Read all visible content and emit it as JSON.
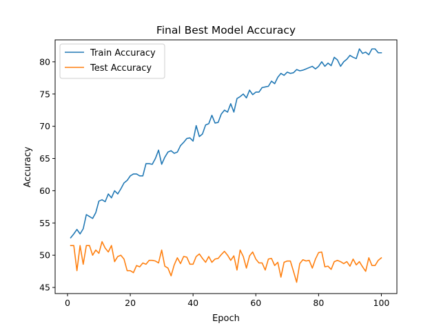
{
  "chart_data": {
    "type": "line",
    "title": "Final Best Model Accuracy",
    "xlabel": "Epoch",
    "ylabel": "Accuracy",
    "xlim": [
      -3.95,
      104.95
    ],
    "ylim": [
      44.05,
      83.4
    ],
    "xticks": [
      0,
      20,
      40,
      60,
      80,
      100
    ],
    "yticks": [
      45,
      50,
      55,
      60,
      65,
      70,
      75,
      80
    ],
    "grid": false,
    "legend_position": "top-left",
    "x": [
      1,
      2,
      3,
      4,
      5,
      6,
      7,
      8,
      9,
      10,
      11,
      12,
      13,
      14,
      15,
      16,
      17,
      18,
      19,
      20,
      21,
      22,
      23,
      24,
      25,
      26,
      27,
      28,
      29,
      30,
      31,
      32,
      33,
      34,
      35,
      36,
      37,
      38,
      39,
      40,
      41,
      42,
      43,
      44,
      45,
      46,
      47,
      48,
      49,
      50,
      51,
      52,
      53,
      54,
      55,
      56,
      57,
      58,
      59,
      60,
      61,
      62,
      63,
      64,
      65,
      66,
      67,
      68,
      69,
      70,
      71,
      72,
      73,
      74,
      75,
      76,
      77,
      78,
      79,
      80,
      81,
      82,
      83,
      84,
      85,
      86,
      87,
      88,
      89,
      90,
      91,
      92,
      93,
      94,
      95,
      96,
      97,
      98,
      99,
      100
    ],
    "series": [
      {
        "name": "Train Accuracy",
        "color": "#1f77b4",
        "values": [
          52.7,
          53.3,
          54.0,
          53.3,
          54.1,
          56.3,
          56.0,
          55.7,
          56.6,
          58.4,
          58.6,
          58.3,
          59.5,
          58.9,
          60.0,
          59.5,
          60.3,
          61.2,
          61.6,
          62.3,
          62.6,
          62.6,
          62.3,
          62.3,
          64.2,
          64.2,
          64.1,
          65.0,
          66.3,
          64.1,
          65.2,
          66.0,
          66.2,
          65.8,
          66.0,
          67.0,
          67.5,
          68.1,
          68.2,
          67.7,
          70.1,
          68.4,
          68.8,
          70.2,
          70.4,
          71.7,
          70.5,
          70.6,
          71.9,
          72.5,
          72.2,
          73.5,
          72.2,
          74.3,
          74.6,
          75.0,
          74.4,
          75.6,
          74.9,
          75.3,
          75.3,
          76.0,
          76.1,
          76.2,
          77.0,
          76.6,
          77.6,
          78.2,
          77.9,
          78.4,
          78.2,
          78.3,
          78.8,
          78.6,
          78.7,
          78.9,
          79.1,
          79.3,
          78.9,
          79.3,
          80.0,
          79.3,
          79.8,
          79.4,
          80.7,
          80.3,
          79.3,
          80.0,
          80.4,
          81.0,
          80.7,
          80.5,
          82.0,
          81.3,
          81.5,
          81.1,
          82.0,
          82.0,
          81.4,
          81.4
        ]
      },
      {
        "name": "Test Accuracy",
        "color": "#ff7f0e",
        "values": [
          51.5,
          51.5,
          47.6,
          51.5,
          48.6,
          51.5,
          51.5,
          50.0,
          50.8,
          50.3,
          52.1,
          51.1,
          50.5,
          51.5,
          49.0,
          49.8,
          50.0,
          49.4,
          47.6,
          47.6,
          47.3,
          48.4,
          48.2,
          48.8,
          48.6,
          49.2,
          49.2,
          49.1,
          48.8,
          50.8,
          48.3,
          48.0,
          46.8,
          48.5,
          49.6,
          48.7,
          49.8,
          49.7,
          48.6,
          48.6,
          49.8,
          50.2,
          49.5,
          48.9,
          49.8,
          48.9,
          49.4,
          49.5,
          50.1,
          50.6,
          50.0,
          49.2,
          49.9,
          47.7,
          50.8,
          49.8,
          48.0,
          49.9,
          50.5,
          49.4,
          48.8,
          48.8,
          47.7,
          49.4,
          49.5,
          48.4,
          48.9,
          46.6,
          48.9,
          49.1,
          49.1,
          47.5,
          45.8,
          48.7,
          49.3,
          49.1,
          49.2,
          48.0,
          49.4,
          50.4,
          50.5,
          48.2,
          48.3,
          47.8,
          49.0,
          49.2,
          49.0,
          48.7,
          49.0,
          48.3,
          49.4,
          48.5,
          49.0,
          48.2,
          47.5,
          49.6,
          48.4,
          48.4,
          49.2,
          49.6
        ]
      }
    ]
  }
}
